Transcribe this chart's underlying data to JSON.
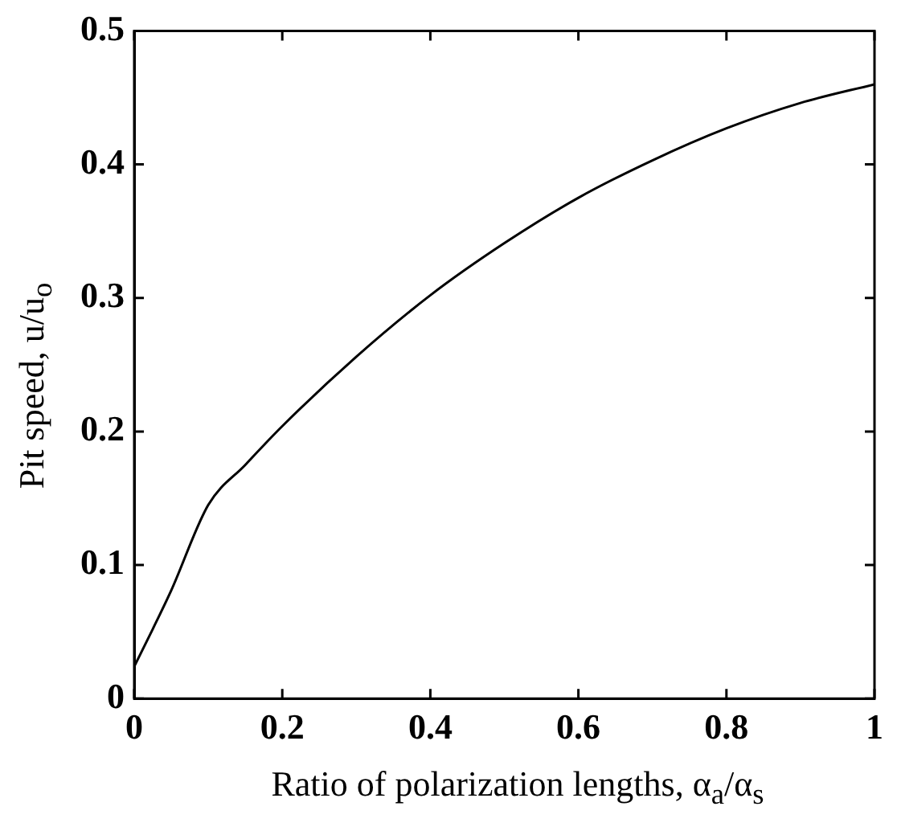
{
  "chart_data": {
    "type": "line",
    "xlabel": "Ratio of polarization lengths, α$_{a}$/α$_{s}$",
    "ylabel": "Pit speed, u/u$_{o}$",
    "x": [
      0,
      0.025,
      0.05,
      0.1,
      0.15,
      0.2,
      0.3,
      0.4,
      0.5,
      0.6,
      0.7,
      0.8,
      0.9,
      1.0
    ],
    "series": [
      {
        "color": "#000000",
        "values": [
          0.024,
          0.052,
          0.081,
          0.145,
          0.175,
          0.204,
          0.256,
          0.302,
          0.341,
          0.375,
          0.403,
          0.427,
          0.446,
          0.46
        ]
      }
    ],
    "xlim": [
      0,
      1
    ],
    "ylim": [
      0,
      0.5
    ],
    "xticks": [
      0,
      0.2,
      0.4,
      0.6,
      0.8,
      1
    ],
    "yticks": [
      0,
      0.1,
      0.2,
      0.3,
      0.4,
      0.5
    ],
    "grid": false,
    "legend": false,
    "marker": "none",
    "line_style": "solid"
  }
}
